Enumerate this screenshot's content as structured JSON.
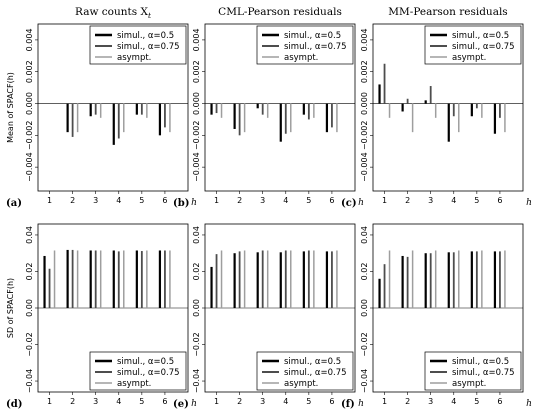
{
  "colors": {
    "simul_05": "#000000",
    "simul_075": "#4d4d4d",
    "asympt": "#9e9e9e",
    "frame": "#000000"
  },
  "lags": [
    1,
    2,
    3,
    4,
    5,
    6
  ],
  "x_axis_symbol": "h",
  "legend": [
    "simul., α=0.5",
    "simul., α=0.75",
    "asympt."
  ],
  "row_ylabels": [
    "Mean of SPACF(h)",
    "SD of SPACF(h)"
  ],
  "chart_data": [
    {
      "type": "bar",
      "panel": "a",
      "tag": "(a)",
      "title": "Raw counts X",
      "title_sub": "t",
      "ylabel": "Mean of SPACF(h)",
      "xlabel": "h",
      "legend_position": "top-right",
      "ylim": [
        -0.0055,
        0.005
      ],
      "yticks": [
        -0.004,
        -0.002,
        0.0,
        0.002,
        0.004
      ],
      "ytick_labels": [
        "−0.004",
        "−0.002",
        "0.000",
        "0.002",
        "0.004"
      ],
      "x": [
        1,
        2,
        3,
        4,
        5,
        6
      ],
      "series": [
        {
          "name": "simul., α=0.5",
          "values": [
            0,
            -0.0018,
            -0.0008,
            -0.0026,
            -0.0007,
            -0.002
          ]
        },
        {
          "name": "simul., α=0.75",
          "values": [
            0,
            -0.0021,
            -0.0007,
            -0.0022,
            -0.0007,
            -0.0015
          ]
        },
        {
          "name": "asympt.",
          "values": [
            0,
            -0.0018,
            -0.0009,
            -0.0018,
            -0.0009,
            -0.0018
          ]
        }
      ]
    },
    {
      "type": "bar",
      "panel": "b",
      "tag": "(b)",
      "title": "CML-Pearson residuals",
      "title_sub": "",
      "ylabel": "",
      "xlabel": "h",
      "legend_position": "top-right",
      "ylim": [
        -0.0055,
        0.005
      ],
      "yticks": [
        -0.004,
        -0.002,
        0.0,
        0.002,
        0.004
      ],
      "ytick_labels": [
        "−0.004",
        "−0.002",
        "0.000",
        "0.002",
        "0.004"
      ],
      "x": [
        1,
        2,
        3,
        4,
        5,
        6
      ],
      "series": [
        {
          "name": "simul., α=0.5",
          "values": [
            -0.0007,
            -0.0016,
            -0.0003,
            -0.0024,
            -0.0007,
            -0.0018
          ]
        },
        {
          "name": "simul., α=0.75",
          "values": [
            -0.0006,
            -0.002,
            -0.0007,
            -0.0019,
            -0.001,
            -0.0015
          ]
        },
        {
          "name": "asympt.",
          "values": [
            -0.0009,
            -0.0018,
            -0.0009,
            -0.0018,
            -0.0009,
            -0.0018
          ]
        }
      ]
    },
    {
      "type": "bar",
      "panel": "c",
      "tag": "(c)",
      "title": "MM-Pearson residuals",
      "title_sub": "",
      "ylabel": "",
      "xlabel": "h",
      "legend_position": "top-right",
      "ylim": [
        -0.0055,
        0.005
      ],
      "yticks": [
        -0.004,
        -0.002,
        0.0,
        0.002,
        0.004
      ],
      "ytick_labels": [
        "−0.004",
        "−0.002",
        "0.000",
        "0.002",
        "0.004"
      ],
      "x": [
        1,
        2,
        3,
        4,
        5,
        6
      ],
      "series": [
        {
          "name": "simul., α=0.5",
          "values": [
            0.0012,
            -0.0005,
            0.0002,
            -0.0024,
            -0.0008,
            -0.0019
          ]
        },
        {
          "name": "simul., α=0.75",
          "values": [
            0.0025,
            0.0003,
            0.0011,
            -0.0008,
            -0.0003,
            -0.0009
          ]
        },
        {
          "name": "asympt.",
          "values": [
            -0.0009,
            -0.0018,
            -0.0009,
            -0.0018,
            -0.0009,
            -0.0018
          ]
        }
      ]
    },
    {
      "type": "bar",
      "panel": "d",
      "tag": "(d)",
      "title": "",
      "title_sub": "",
      "ylabel": "SD of SPACF(h)",
      "xlabel": "h",
      "legend_position": "bottom-right",
      "ylim": [
        -0.046,
        0.046
      ],
      "yticks": [
        -0.04,
        -0.02,
        0.0,
        0.02,
        0.04
      ],
      "ytick_labels": [
        "−0.04",
        "−0.02",
        "0.00",
        "0.02",
        "0.04"
      ],
      "x": [
        1,
        2,
        3,
        4,
        5,
        6
      ],
      "series": [
        {
          "name": "simul., α=0.5",
          "values": [
            0.0285,
            0.0318,
            0.0315,
            0.0315,
            0.0315,
            0.0315
          ]
        },
        {
          "name": "simul., α=0.75",
          "values": [
            0.0215,
            0.0318,
            0.0315,
            0.031,
            0.0312,
            0.0315
          ]
        },
        {
          "name": "asympt.",
          "values": [
            0.0315,
            0.0315,
            0.0315,
            0.0315,
            0.0315,
            0.0315
          ]
        }
      ]
    },
    {
      "type": "bar",
      "panel": "e",
      "tag": "(e)",
      "title": "",
      "title_sub": "",
      "ylabel": "",
      "xlabel": "h",
      "legend_position": "bottom-right",
      "ylim": [
        -0.046,
        0.046
      ],
      "yticks": [
        -0.04,
        -0.02,
        0.0,
        0.02,
        0.04
      ],
      "ytick_labels": [
        "−0.04",
        "−0.02",
        "0.00",
        "0.02",
        "0.04"
      ],
      "x": [
        1,
        2,
        3,
        4,
        5,
        6
      ],
      "series": [
        {
          "name": "simul., α=0.5",
          "values": [
            0.0225,
            0.03,
            0.0305,
            0.0305,
            0.031,
            0.031
          ]
        },
        {
          "name": "simul., α=0.75",
          "values": [
            0.0295,
            0.031,
            0.0315,
            0.0315,
            0.0315,
            0.031
          ]
        },
        {
          "name": "asympt.",
          "values": [
            0.0315,
            0.0315,
            0.0315,
            0.0315,
            0.0315,
            0.0315
          ]
        }
      ]
    },
    {
      "type": "bar",
      "panel": "f",
      "tag": "(f)",
      "title": "",
      "title_sub": "",
      "ylabel": "",
      "xlabel": "h",
      "legend_position": "bottom-right",
      "ylim": [
        -0.046,
        0.046
      ],
      "yticks": [
        -0.04,
        -0.02,
        0.0,
        0.02,
        0.04
      ],
      "ytick_labels": [
        "−0.04",
        "−0.02",
        "0.00",
        "0.02",
        "0.04"
      ],
      "x": [
        1,
        2,
        3,
        4,
        5,
        6
      ],
      "series": [
        {
          "name": "simul., α=0.5",
          "values": [
            0.016,
            0.0285,
            0.03,
            0.0305,
            0.031,
            0.031
          ]
        },
        {
          "name": "simul., α=0.75",
          "values": [
            0.024,
            0.028,
            0.03,
            0.0305,
            0.031,
            0.031
          ]
        },
        {
          "name": "asympt.",
          "values": [
            0.0315,
            0.0315,
            0.0315,
            0.0315,
            0.0315,
            0.0315
          ]
        }
      ]
    }
  ]
}
